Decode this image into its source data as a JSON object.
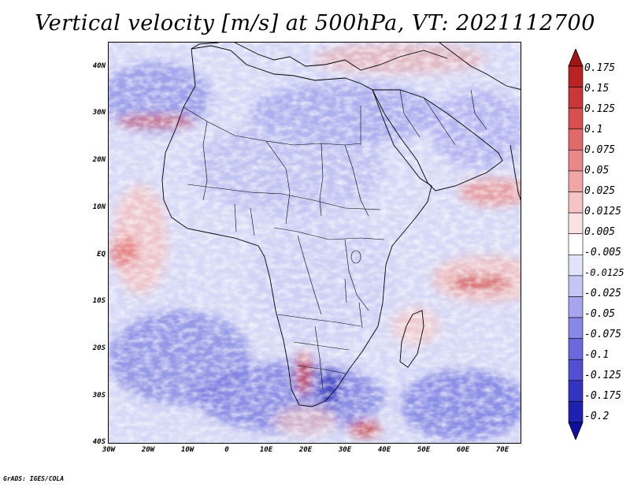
{
  "title": "Vertical velocity [m/s] at 500hPa, VT: 2021112700",
  "credit": "GrADS: IGES/COLA",
  "map": {
    "region": "Africa",
    "variable": "vertical velocity",
    "units": "m/s",
    "level": "500hPa",
    "valid_time": "2021112700",
    "lat_labels": [
      "40N",
      "30N",
      "20N",
      "10N",
      "EQ",
      "10S",
      "20S",
      "30S",
      "40S"
    ],
    "lon_labels": [
      "30W",
      "20W",
      "10W",
      "0",
      "10E",
      "20E",
      "30E",
      "40E",
      "50E",
      "60E",
      "70E"
    ]
  },
  "colorbar": {
    "labels": [
      "0.175",
      "0.15",
      "0.125",
      "0.1",
      "0.075",
      "0.05",
      "0.025",
      "0.0125",
      "0.005",
      "-0.005",
      "-0.0125",
      "-0.025",
      "-0.05",
      "-0.075",
      "-0.1",
      "-0.125",
      "-0.175",
      "-0.2"
    ],
    "colors": [
      "#a01414",
      "#b82424",
      "#c83838",
      "#d65050",
      "#e06a6a",
      "#e88888",
      "#f0a6a6",
      "#f6c4c4",
      "#fbe2e2",
      "#ffffff",
      "#e2e2fb",
      "#c6c6f4",
      "#a6a6ee",
      "#8888e6",
      "#6a6ade",
      "#5050d0",
      "#3434c0",
      "#2020b0",
      "#1010a0"
    ]
  }
}
